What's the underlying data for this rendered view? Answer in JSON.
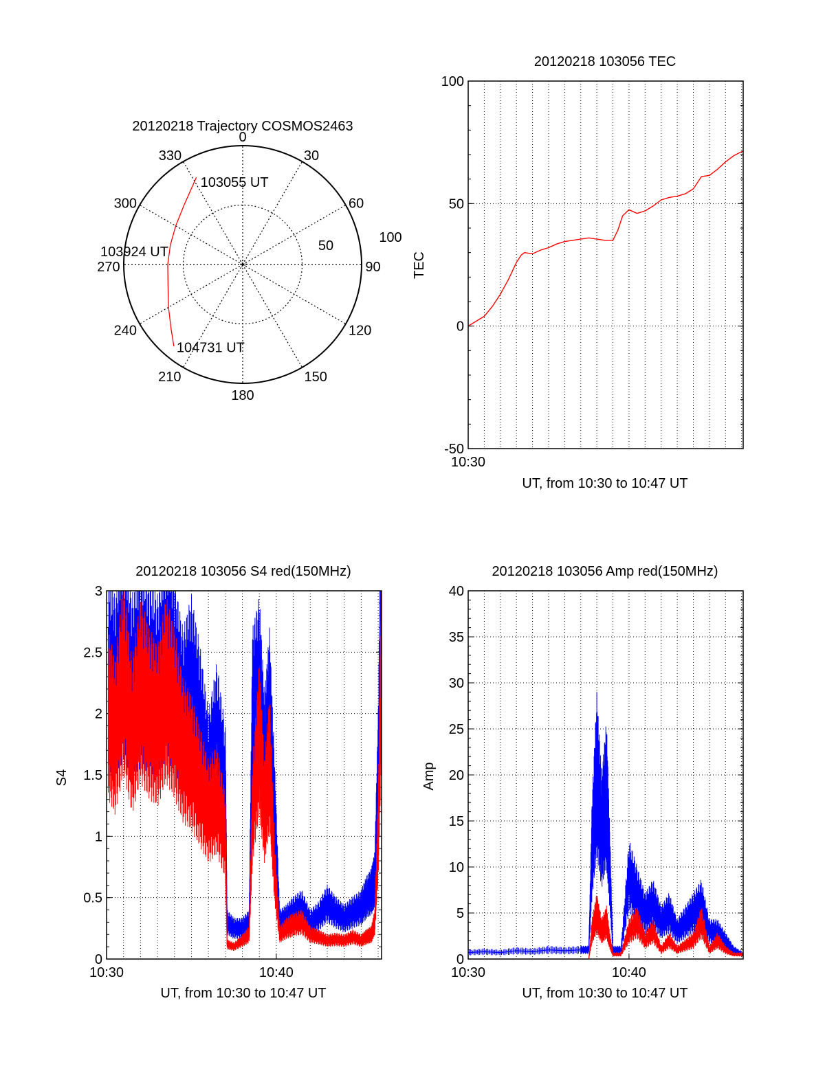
{
  "chart_data": [
    {
      "type": "polar",
      "title": "20120218 Trajectory COSMOS2463",
      "angle_labels": [
        "0",
        "30",
        "60",
        "90",
        "120",
        "150",
        "180",
        "210",
        "240",
        "270",
        "300",
        "330"
      ],
      "radius_labels": [
        "50",
        "100"
      ],
      "rlim": [
        0,
        100
      ],
      "grid": true,
      "colors": {
        "trajectory": "#ff0000"
      },
      "trajectory": [
        {
          "az": 332,
          "r": 83
        },
        {
          "az": 315,
          "r": 70
        },
        {
          "az": 300,
          "r": 65
        },
        {
          "az": 285,
          "r": 63
        },
        {
          "az": 270,
          "r": 63
        },
        {
          "az": 255,
          "r": 65
        },
        {
          "az": 240,
          "r": 72
        },
        {
          "az": 228,
          "r": 81
        },
        {
          "az": 220,
          "r": 90
        }
      ],
      "annotations": [
        {
          "text": "103055 UT",
          "az": 332,
          "r": 83
        },
        {
          "text": "103924 UT",
          "az": 270,
          "r": 63
        },
        {
          "text": "104731 UT",
          "az": 220,
          "r": 90
        }
      ]
    },
    {
      "type": "line",
      "title": "20120218 103056 TEC",
      "xlabel": "UT, from 10:30 to 10:47 UT",
      "ylabel": "TEC",
      "xlim": [
        0,
        17.1
      ],
      "ylim": [
        -50,
        100
      ],
      "yticks": [
        -50,
        0,
        50,
        100
      ],
      "xtick_labels": [
        {
          "x": 0,
          "label": "10:30"
        }
      ],
      "grid": true,
      "series": [
        {
          "color": "#ff0000",
          "x": [
            0,
            0.5,
            1,
            1.5,
            2,
            2.5,
            3,
            3.3,
            3.5,
            4,
            4.5,
            5,
            5.5,
            6,
            6.5,
            7,
            7.5,
            8,
            8.5,
            9,
            9.3,
            9.6,
            10,
            10.5,
            11,
            11.5,
            12,
            12.5,
            13,
            13.5,
            14,
            14.5,
            15,
            15.5,
            16,
            16.5,
            17.1
          ],
          "y": [
            0,
            2,
            4,
            8,
            13,
            19,
            26,
            29,
            30,
            29.5,
            31,
            32,
            33.5,
            34.5,
            35,
            35.5,
            36,
            35.5,
            35,
            35,
            39,
            45,
            47.5,
            46,
            47,
            49,
            51.5,
            52.5,
            53,
            54,
            56,
            61,
            61.5,
            64,
            67,
            69.5,
            71.5
          ]
        }
      ]
    },
    {
      "type": "line",
      "title": "20120218 103056 S4 red(150MHz)",
      "xlabel": "UT, from 10:30 to 10:47 UT",
      "ylabel": "S4",
      "xlim": [
        0,
        16.2
      ],
      "ylim": [
        0,
        3
      ],
      "yticks": [
        "0",
        "0.5",
        "1",
        "1.5",
        "2",
        "2.5",
        "3"
      ],
      "xtick_labels": [
        {
          "x": 0,
          "label": "10:30"
        },
        {
          "x": 10,
          "label": "10:40"
        }
      ],
      "grid": true,
      "series": [
        {
          "color": "#0000ff",
          "x": [
            0.1,
            0.5,
            1,
            1.5,
            2,
            2.5,
            3,
            3.5,
            4,
            4.5,
            5,
            5.5,
            6,
            6.5,
            7,
            7.1,
            7.5,
            8,
            8.4,
            8.6,
            9,
            9.3,
            9.6,
            9.9,
            10.2,
            10.6,
            11,
            11.5,
            12,
            12.5,
            13,
            13.5,
            14,
            14.5,
            15,
            15.3,
            15.6,
            15.8,
            16,
            16.2
          ],
          "y": [
            2.3,
            2.2,
            2.5,
            2.2,
            2.4,
            2.3,
            2.2,
            2.5,
            2.3,
            2.0,
            2.2,
            1.9,
            1.5,
            1.8,
            1.4,
            0.3,
            0.25,
            0.25,
            0.3,
            2.0,
            2.2,
            1.6,
            2.0,
            1.2,
            0.3,
            0.33,
            0.38,
            0.42,
            0.3,
            0.35,
            0.45,
            0.38,
            0.33,
            0.38,
            0.42,
            0.5,
            0.55,
            0.65,
            1.5,
            3.0
          ]
        },
        {
          "color": "#ff0000",
          "x": [
            0.1,
            0.5,
            1,
            1.5,
            2,
            2.5,
            3,
            3.5,
            4,
            4.5,
            5,
            5.5,
            6,
            6.5,
            7,
            7.1,
            7.5,
            8,
            8.4,
            8.6,
            9,
            9.3,
            9.6,
            9.9,
            10.2,
            10.6,
            11,
            11.5,
            12,
            12.5,
            13,
            13.5,
            14,
            14.5,
            15,
            15.3,
            15.6,
            15.8,
            16,
            16.2
          ],
          "y": [
            2.0,
            1.8,
            2.3,
            1.8,
            2.2,
            2.0,
            1.9,
            2.2,
            2.0,
            1.7,
            1.6,
            1.4,
            1.2,
            1.3,
            1.0,
            0.12,
            0.1,
            0.15,
            0.2,
            1.2,
            1.8,
            1.2,
            1.6,
            0.7,
            0.2,
            0.25,
            0.28,
            0.3,
            0.2,
            0.18,
            0.15,
            0.16,
            0.15,
            0.18,
            0.15,
            0.18,
            0.2,
            0.3,
            1.0,
            2.5
          ]
        }
      ]
    },
    {
      "type": "line",
      "title": "20120218 103056 Amp red(150MHz)",
      "xlabel": "UT, from 10:30 to 10:47 UT",
      "ylabel": "Amp",
      "xlim": [
        0,
        17.1
      ],
      "ylim": [
        0,
        40
      ],
      "yticks": [
        0,
        5,
        10,
        15,
        20,
        25,
        30,
        35,
        40
      ],
      "xtick_labels": [
        {
          "x": 0,
          "label": "10:30"
        },
        {
          "x": 10,
          "label": "10:40"
        }
      ],
      "grid": true,
      "series": [
        {
          "color": "#0000ff",
          "x": [
            0,
            1,
            2,
            3,
            4,
            5,
            6,
            7,
            7.5,
            7.7,
            8,
            8.3,
            8.6,
            8.8,
            9,
            9.5,
            10,
            10.5,
            11,
            11.5,
            12,
            12.5,
            13,
            13.5,
            14,
            14.5,
            15,
            15.5,
            16,
            16.5,
            17.1
          ],
          "y": [
            0.7,
            0.8,
            0.7,
            0.9,
            0.8,
            1.0,
            0.9,
            1.0,
            1.0,
            12,
            20,
            14,
            18,
            10,
            1.0,
            1.0,
            9,
            7,
            5,
            6,
            4,
            5,
            3,
            4,
            5,
            6,
            3,
            3,
            2,
            1.0,
            0.5
          ]
        },
        {
          "color": "#ff0000",
          "x": [
            0,
            7.5,
            7.7,
            8,
            8.3,
            8.6,
            8.8,
            9,
            9.5,
            10,
            10.5,
            11,
            11.5,
            12,
            12.5,
            13,
            13.5,
            14,
            14.5,
            15,
            15.5,
            16,
            16.5,
            17.1
          ],
          "y": [
            0,
            0,
            3,
            5,
            3,
            4,
            2,
            0.5,
            0.5,
            3,
            4,
            2,
            3,
            1,
            2,
            1,
            1.5,
            2,
            4,
            1,
            2,
            1,
            0.5,
            0.5
          ]
        }
      ]
    }
  ]
}
